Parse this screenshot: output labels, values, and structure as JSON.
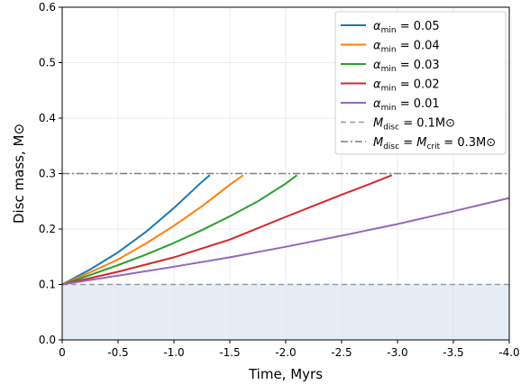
{
  "chart_data": {
    "type": "line",
    "xlabel": "Time, Myrs",
    "ylabel": "Disc mass, M⊙",
    "xlim": [
      0,
      -4.0
    ],
    "ylim": [
      0,
      0.6
    ],
    "grid": true,
    "legend_position": "top-right",
    "x_ticks": [
      {
        "value": 0,
        "label": "0"
      },
      {
        "value": -0.5,
        "label": "-0.5"
      },
      {
        "value": -1.0,
        "label": "-1.0"
      },
      {
        "value": -1.5,
        "label": "-1.5"
      },
      {
        "value": -2.0,
        "label": "-2.0"
      },
      {
        "value": -2.5,
        "label": "-2.5"
      },
      {
        "value": -3.0,
        "label": "-3.0"
      },
      {
        "value": -3.5,
        "label": "-3.5"
      },
      {
        "value": -4.0,
        "label": "-4.0"
      }
    ],
    "y_ticks": [
      {
        "value": 0.0,
        "label": "0.0"
      },
      {
        "value": 0.1,
        "label": "0.1"
      },
      {
        "value": 0.2,
        "label": "0.2"
      },
      {
        "value": 0.3,
        "label": "0.3"
      },
      {
        "value": 0.4,
        "label": "0.4"
      },
      {
        "value": 0.5,
        "label": "0.5"
      },
      {
        "value": 0.6,
        "label": "0.6"
      }
    ],
    "shaded_region": {
      "y_from": 0.0,
      "y_to": 0.1,
      "color": "#e5edf7"
    },
    "series": [
      {
        "legend_main": "α",
        "legend_sub": "min",
        "legend_rest": " = 0.05",
        "color": "#1f77b4",
        "style": "solid",
        "x": [
          0,
          -0.25,
          -0.5,
          -0.75,
          -1.0,
          -1.25,
          -1.32
        ],
        "y": [
          0.1,
          0.127,
          0.158,
          0.195,
          0.238,
          0.285,
          0.297
        ]
      },
      {
        "legend_main": "α",
        "legend_sub": "min",
        "legend_rest": " = 0.04",
        "color": "#ff7f0e",
        "style": "solid",
        "x": [
          0,
          -0.25,
          -0.5,
          -0.75,
          -1.0,
          -1.25,
          -1.5,
          -1.62
        ],
        "y": [
          0.1,
          0.122,
          0.145,
          0.174,
          0.206,
          0.241,
          0.28,
          0.297
        ]
      },
      {
        "legend_main": "α",
        "legend_sub": "min",
        "legend_rest": " = 0.03",
        "color": "#2ca02c",
        "style": "solid",
        "x": [
          0,
          -0.25,
          -0.5,
          -0.75,
          -1.0,
          -1.25,
          -1.5,
          -1.75,
          -2.0,
          -2.1
        ],
        "y": [
          0.1,
          0.117,
          0.135,
          0.154,
          0.175,
          0.198,
          0.223,
          0.25,
          0.282,
          0.297
        ]
      },
      {
        "legend_main": "α",
        "legend_sub": "min",
        "legend_rest": " = 0.02",
        "color": "#d62728",
        "style": "solid",
        "x": [
          0,
          -0.5,
          -1.0,
          -1.5,
          -2.0,
          -2.5,
          -2.75,
          -2.95
        ],
        "y": [
          0.1,
          0.123,
          0.149,
          0.181,
          0.222,
          0.262,
          0.281,
          0.297
        ]
      },
      {
        "legend_main": "α",
        "legend_sub": "min",
        "legend_rest": " = 0.01",
        "color": "#9467bd",
        "style": "solid",
        "x": [
          0,
          -0.5,
          -1.0,
          -1.5,
          -2.0,
          -2.5,
          -3.0,
          -3.5,
          -4.0
        ],
        "y": [
          0.1,
          0.116,
          0.132,
          0.149,
          0.168,
          0.188,
          0.209,
          0.232,
          0.256
        ]
      },
      {
        "legend_main": "M",
        "legend_sub": "disc",
        "legend_rest": " = 0.1M⊙",
        "color": "#999999",
        "style": "dashed",
        "x": [
          0,
          -4.0
        ],
        "y": [
          0.1,
          0.1
        ]
      },
      {
        "legend_main": "M",
        "legend_sub": "disc",
        "legend_rest": " = ",
        "legend_main2": "M",
        "legend_sub2": "crit",
        "legend_rest2": " = 0.3M⊙",
        "color": "#7f7f7f",
        "style": "dashdot",
        "x": [
          0,
          -4.0
        ],
        "y": [
          0.3,
          0.3
        ]
      }
    ]
  }
}
